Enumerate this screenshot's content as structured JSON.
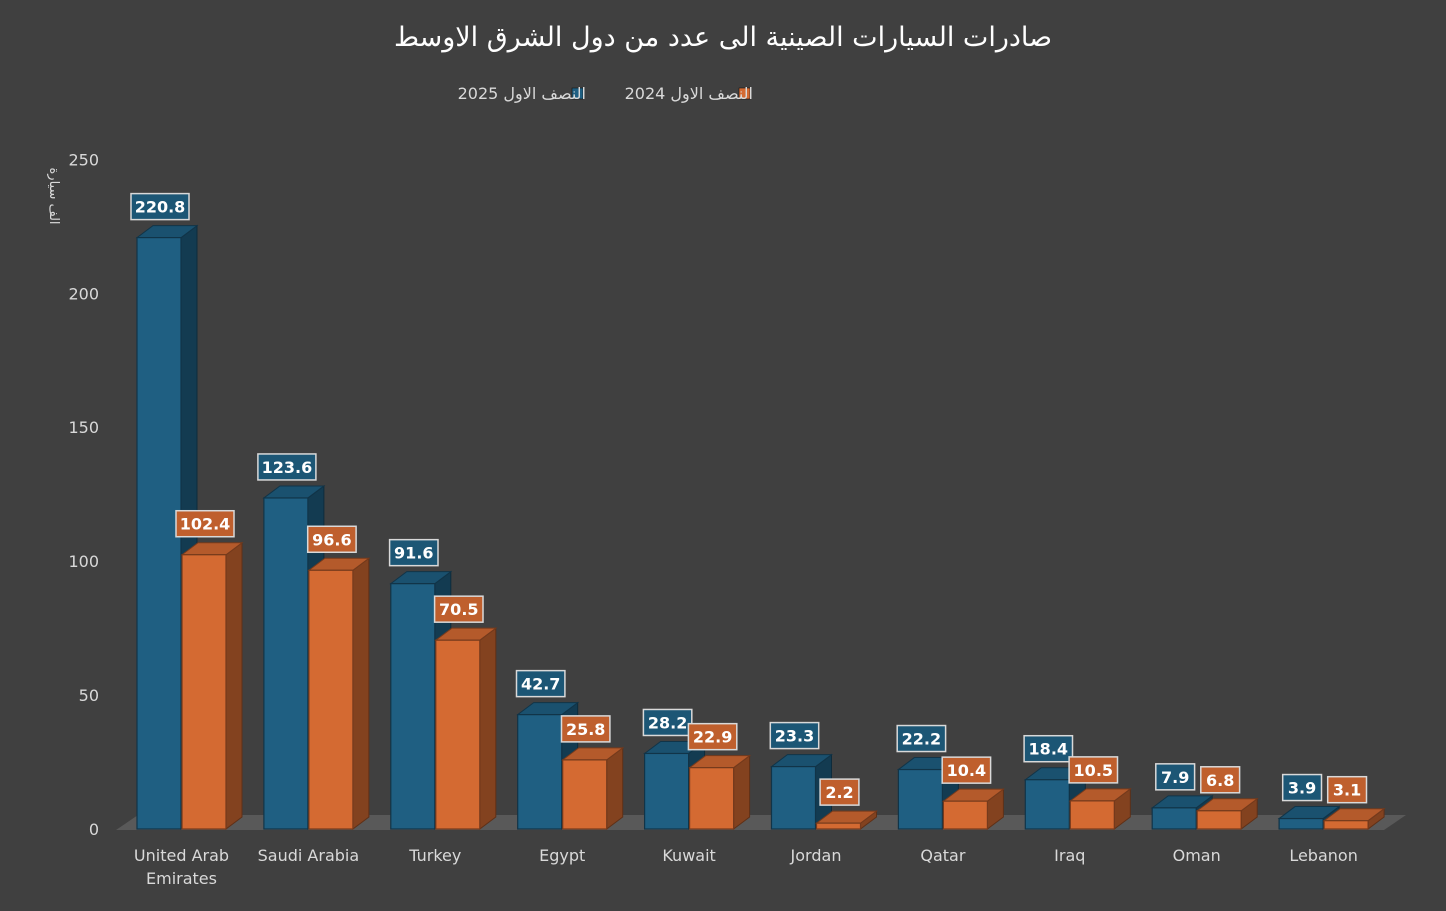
{
  "chart_data": {
    "type": "bar",
    "title": "صادرات السيارات الصينية الى عدد من دول الشرق الاوسط",
    "ylabel": "الف سيارة",
    "xlabel": "",
    "ylim": [
      0,
      250
    ],
    "yticks": [
      0,
      50,
      100,
      150,
      200,
      250
    ],
    "grid": false,
    "legend_position": "top",
    "three_d": true,
    "data_labels": true,
    "categories": [
      "United Arab Emirates",
      "Saudi Arabia",
      "Turkey",
      "Egypt",
      "Kuwait",
      "Jordan",
      "Qatar",
      "Iraq",
      "Oman",
      "Lebanon"
    ],
    "series": [
      {
        "name": "النصف الاول 2025",
        "color": "#1f5f82",
        "values": [
          220.8,
          123.6,
          91.6,
          42.7,
          28.2,
          23.3,
          22.2,
          18.4,
          7.9,
          3.9
        ]
      },
      {
        "name": "النصف الاول 2024",
        "color": "#d46a32",
        "values": [
          102.4,
          96.6,
          70.5,
          25.8,
          22.9,
          2.2,
          10.4,
          10.5,
          6.8,
          3.1
        ]
      }
    ],
    "colors": {
      "background": "#404040",
      "text": "#d9d9d9",
      "floor": "#595959"
    }
  }
}
